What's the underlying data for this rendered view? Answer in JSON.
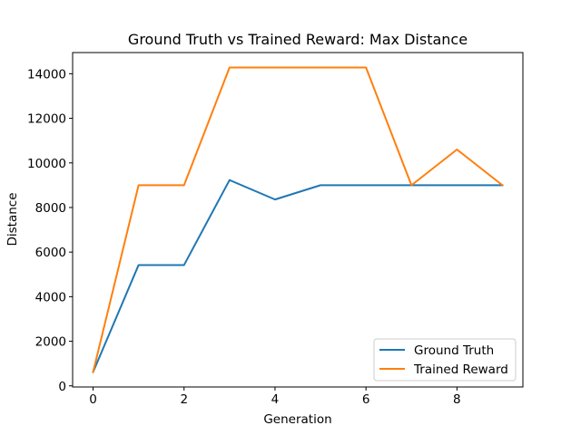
{
  "chart_data": {
    "type": "line",
    "title": "Ground Truth vs Trained Reward: Max Distance",
    "xlabel": "Generation",
    "ylabel": "Distance",
    "x": [
      0,
      1,
      2,
      3,
      4,
      5,
      6,
      7,
      8,
      9
    ],
    "xlim": [
      -0.45,
      9.45
    ],
    "ylim": [
      -50,
      14950
    ],
    "xticks": [
      0,
      2,
      4,
      6,
      8
    ],
    "yticks": [
      0,
      2000,
      4000,
      6000,
      8000,
      10000,
      12000,
      14000
    ],
    "grid": false,
    "legend_position": "lower-right",
    "series": [
      {
        "name": "Ground Truth",
        "color": "#1f77b4",
        "values": [
          620,
          5420,
          5420,
          9230,
          8360,
          9000,
          9000,
          9000,
          9000,
          9000
        ]
      },
      {
        "name": "Trained Reward",
        "color": "#ff7f0e",
        "values": [
          620,
          9000,
          9000,
          14280,
          14280,
          14280,
          14280,
          9000,
          10600,
          9000
        ]
      }
    ]
  }
}
